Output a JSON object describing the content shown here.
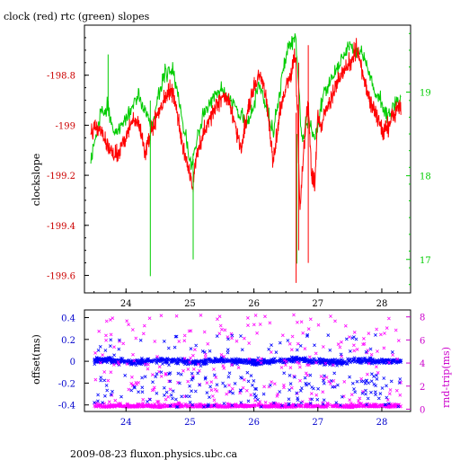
{
  "footer": "2009-08-23 fluxon.physics.ubc.ca",
  "chart_data": [
    {
      "type": "line",
      "title": "clock (red) rtc (green) slopes",
      "xlabel": "",
      "ylabel": "clockslope",
      "grid": false,
      "x_ticks": [
        24,
        25,
        26,
        27,
        28
      ],
      "y_left_ticks": [
        -198.8,
        -199,
        -199.2,
        -199.4,
        -199.6
      ],
      "y_left_tick_labels": [
        "-198.8",
        "-199",
        "-199.2",
        "-199.4",
        "-199.6"
      ],
      "y_right_ticks": [
        17,
        18,
        19
      ],
      "xlim": [
        23.35,
        28.45
      ],
      "ylim_left": [
        -199.67,
        -198.6
      ],
      "ylim_right": [
        16.6,
        19.8
      ],
      "colors": {
        "clock": "#ff0000",
        "rtc": "#00cc00",
        "left_axis": "#cc0000",
        "right_axis": "#00cc00"
      },
      "series": [
        {
          "axis": "left",
          "color": "#ff0000",
          "x": [
            23.45,
            23.5,
            23.6,
            23.7,
            23.8,
            23.9,
            24.0,
            24.1,
            24.2,
            24.3,
            24.4,
            24.5,
            24.6,
            24.7,
            24.8,
            24.9,
            25.0,
            25.05,
            25.1,
            25.2,
            25.3,
            25.4,
            25.5,
            25.6,
            25.7,
            25.8,
            25.9,
            26.0,
            26.1,
            26.2,
            26.3,
            26.4,
            26.5,
            26.6,
            26.65,
            26.68,
            26.72,
            26.78,
            26.85,
            26.9,
            26.95,
            27.0,
            27.05,
            27.1,
            27.2,
            27.3,
            27.4,
            27.5,
            27.6,
            27.7,
            27.8,
            27.9,
            28.0,
            28.1,
            28.2,
            28.3
          ],
          "y": [
            -199.05,
            -199.0,
            -199.02,
            -199.08,
            -199.12,
            -199.1,
            -199.05,
            -198.98,
            -199.0,
            -199.12,
            -199.02,
            -198.95,
            -198.9,
            -198.85,
            -198.95,
            -199.1,
            -199.2,
            -199.25,
            -199.12,
            -199.05,
            -198.98,
            -198.93,
            -198.88,
            -198.9,
            -199.0,
            -199.1,
            -198.95,
            -198.85,
            -198.8,
            -198.9,
            -199.15,
            -198.95,
            -198.85,
            -198.78,
            -198.72,
            -198.95,
            -199.35,
            -199.1,
            -198.9,
            -199.2,
            -199.25,
            -198.95,
            -199.02,
            -198.95,
            -198.9,
            -198.83,
            -198.79,
            -198.75,
            -198.7,
            -198.78,
            -198.9,
            -198.95,
            -199.03,
            -199.0,
            -198.95,
            -198.92
          ]
        },
        {
          "axis": "right",
          "color": "#00cc00",
          "x": [
            23.45,
            23.6,
            23.72,
            23.8,
            24.0,
            24.2,
            24.4,
            24.6,
            24.75,
            24.9,
            25.02,
            25.2,
            25.5,
            25.7,
            25.9,
            26.1,
            26.3,
            26.5,
            26.65,
            26.75,
            26.85,
            26.95,
            27.1,
            27.3,
            27.5,
            27.7,
            27.9,
            28.1,
            28.3
          ],
          "y": [
            18.2,
            18.7,
            18.8,
            18.5,
            18.7,
            18.95,
            18.6,
            19.2,
            19.25,
            18.6,
            18.1,
            18.75,
            19.05,
            18.85,
            18.6,
            19.1,
            18.5,
            19.45,
            19.7,
            18.4,
            18.7,
            18.4,
            19.0,
            19.3,
            19.55,
            19.45,
            19.0,
            18.7,
            18.95
          ]
        }
      ],
      "spikes": [
        {
          "series": "rtc",
          "x": 23.72,
          "y_from": 18.8,
          "y_to": 19.45
        },
        {
          "series": "rtc",
          "x": 24.38,
          "y_from": 18.9,
          "y_to": 16.8
        },
        {
          "series": "rtc",
          "x": 25.05,
          "y_from": 18.2,
          "y_to": 17.0
        },
        {
          "series": "rtc",
          "x": 26.67,
          "y_from": 18.5,
          "y_to": 16.95
        },
        {
          "series": "clock",
          "x": 26.66,
          "y_from": -198.95,
          "y_to": -199.63
        },
        {
          "series": "clock",
          "x": 26.7,
          "y_from": -198.75,
          "y_to": -199.5
        },
        {
          "series": "clock",
          "x": 26.85,
          "y_from": -198.68,
          "y_to": -199.55
        }
      ]
    },
    {
      "type": "scatter",
      "title": "",
      "xlabel": "",
      "ylabel_left": "offset(ms)",
      "ylabel_right": "rnd-trip(ms)",
      "x_ticks": [
        24,
        25,
        26,
        27,
        28
      ],
      "y_left_ticks": [
        0.4,
        0.2,
        0,
        -0.2,
        -0.4
      ],
      "y_left_tick_labels": [
        "0.4",
        "0.2",
        "0",
        "-0.2",
        "-0.4"
      ],
      "y_right_ticks": [
        0,
        2,
        4,
        6,
        8
      ],
      "xlim": [
        23.35,
        28.45
      ],
      "ylim_left": [
        -0.46,
        0.47
      ],
      "ylim_right": [
        -0.2,
        8.6
      ],
      "colors": {
        "offset": "#0000ff",
        "roundtrip": "#ff00ff",
        "left_axis": "#0000cc",
        "right_axis": "#cc00cc"
      },
      "series": [
        {
          "name": "offset",
          "axis": "left",
          "marker": "x",
          "color": "#0000ff",
          "x": [
            23.5,
            23.7,
            23.9,
            24.1,
            24.3,
            24.5,
            24.7,
            24.9,
            25.1,
            25.3,
            25.5,
            25.7,
            25.9,
            26.1,
            26.3,
            26.5,
            26.7,
            26.9,
            27.1,
            27.3,
            27.5,
            27.7,
            27.9,
            28.1,
            28.3
          ],
          "y": [
            0.0,
            0.01,
            0.0,
            -0.01,
            0.0,
            0.01,
            0.0,
            0.0,
            -0.01,
            0.0,
            0.01,
            0.0,
            0.0,
            -0.01,
            0.0,
            0.01,
            0.02,
            0.0,
            0.0,
            -0.01,
            0.0,
            0.01,
            0.0,
            0.0,
            0.0
          ]
        },
        {
          "name": "rnd-trip",
          "axis": "right",
          "marker": "x",
          "color": "#ff00ff",
          "x": [
            23.5,
            23.7,
            23.9,
            24.1,
            24.3,
            24.5,
            24.7,
            24.9,
            25.1,
            25.3,
            25.5,
            25.7,
            25.9,
            26.1,
            26.3,
            26.5,
            26.7,
            26.9,
            27.1,
            27.3,
            27.5,
            27.7,
            27.9,
            28.1,
            28.3
          ],
          "y": [
            0.2,
            0.15,
            0.2,
            0.18,
            0.2,
            0.15,
            0.2,
            0.2,
            0.18,
            0.2,
            0.15,
            0.2,
            0.2,
            0.18,
            0.2,
            0.15,
            0.2,
            0.2,
            0.18,
            0.2,
            0.15,
            0.2,
            0.2,
            0.18,
            0.2
          ]
        }
      ]
    }
  ]
}
